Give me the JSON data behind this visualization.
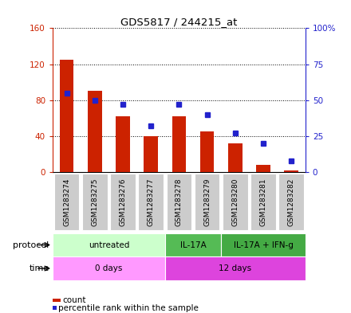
{
  "title": "GDS5817 / 244215_at",
  "samples": [
    "GSM1283274",
    "GSM1283275",
    "GSM1283276",
    "GSM1283277",
    "GSM1283278",
    "GSM1283279",
    "GSM1283280",
    "GSM1283281",
    "GSM1283282"
  ],
  "counts": [
    125,
    90,
    62,
    40,
    62,
    45,
    32,
    8,
    2
  ],
  "percentiles": [
    55,
    50,
    47,
    32,
    47,
    40,
    27,
    20,
    8
  ],
  "bar_color": "#cc2200",
  "dot_color": "#2222cc",
  "ylim_left": [
    0,
    160
  ],
  "ylim_right": [
    0,
    100
  ],
  "yticks_left": [
    0,
    40,
    80,
    120,
    160
  ],
  "yticks_right": [
    0,
    25,
    50,
    75,
    100
  ],
  "yticklabels_left": [
    "0",
    "40",
    "80",
    "120",
    "160"
  ],
  "yticklabels_right": [
    "0",
    "25",
    "50",
    "75",
    "100%"
  ],
  "protocol_groups": [
    {
      "label": "untreated",
      "start": 0,
      "end": 4,
      "color": "#ccffcc"
    },
    {
      "label": "IL-17A",
      "start": 4,
      "end": 6,
      "color": "#55bb55"
    },
    {
      "label": "IL-17A + IFN-g",
      "start": 6,
      "end": 9,
      "color": "#44aa44"
    }
  ],
  "time_groups": [
    {
      "label": "0 days",
      "start": 0,
      "end": 4,
      "color": "#ff99ff"
    },
    {
      "label": "12 days",
      "start": 4,
      "end": 9,
      "color": "#dd44dd"
    }
  ],
  "protocol_label": "protocol",
  "time_label": "time",
  "legend_count_label": "count",
  "legend_pct_label": "percentile rank within the sample",
  "bg_color": "#ffffff",
  "sample_bg_color": "#cccccc",
  "bar_width": 0.5
}
